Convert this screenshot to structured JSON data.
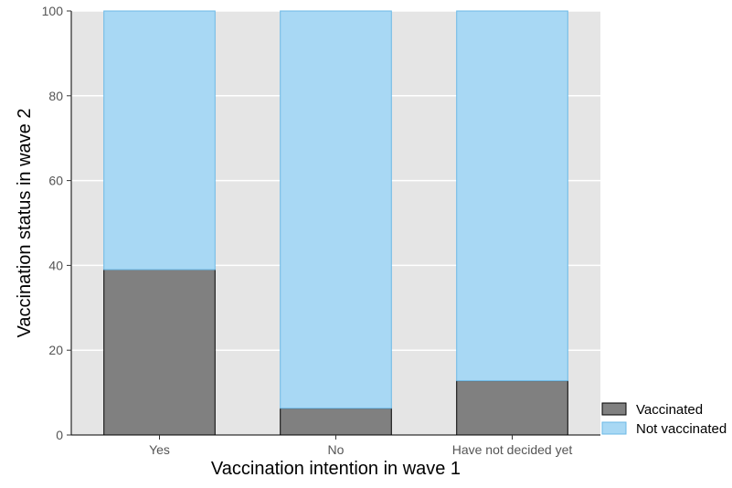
{
  "chart_data": {
    "type": "bar",
    "stacked": true,
    "categories": [
      "Yes",
      "No",
      "Have not decided yet"
    ],
    "series": [
      {
        "name": "Vaccinated",
        "values": [
          39,
          6.3,
          12.8
        ],
        "color": "#808080",
        "stroke": "#000000"
      },
      {
        "name": "Not vaccinated",
        "values": [
          61,
          93.7,
          87.2
        ],
        "color": "#a8d8f4",
        "stroke": "#6bb8e6"
      }
    ],
    "title": "",
    "xlabel": "Vaccination intention in wave 1",
    "ylabel": "Vaccination status in wave 2",
    "ylim": [
      0,
      100
    ],
    "yticks": [
      0,
      20,
      40,
      60,
      80,
      100
    ],
    "grid": true,
    "legend_position": "bottom-right",
    "background": "#e5e5e5",
    "gridline_color": "#ffffff"
  }
}
